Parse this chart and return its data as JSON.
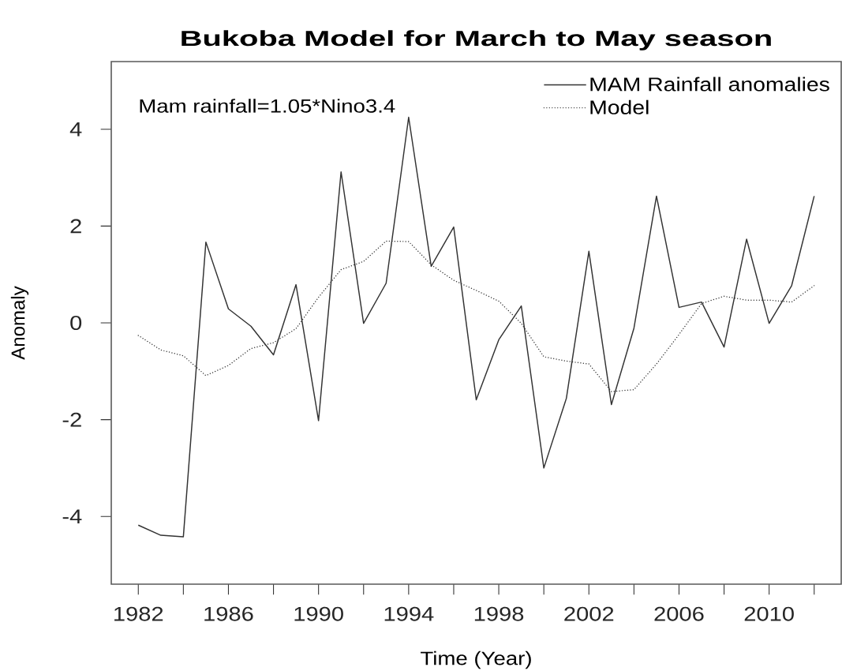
{
  "chart_data": {
    "type": "line",
    "title": "Bukoba Model for March to May season",
    "xlabel": "Time (Year)",
    "ylabel": "Anomaly",
    "annotations": [
      "Mam rainfall=1.05*Nino3.4"
    ],
    "x": [
      1982,
      1983,
      1984,
      1985,
      1986,
      1987,
      1988,
      1989,
      1990,
      1991,
      1992,
      1993,
      1994,
      1995,
      1996,
      1997,
      1998,
      1999,
      2000,
      2001,
      2002,
      2003,
      2004,
      2005,
      2006,
      2007,
      2008,
      2009,
      2010,
      2011,
      2012
    ],
    "xlim": [
      1980.8,
      2013.2
    ],
    "ylim": [
      -5.4,
      5.4
    ],
    "xticks": [
      1982,
      {
        "value": 1984,
        "label": null
      },
      1986,
      {
        "value": 1988,
        "label": null
      },
      1990,
      {
        "value": 1992,
        "label": null
      },
      1994,
      {
        "value": 1996,
        "label": null
      },
      1998,
      {
        "value": 2000,
        "label": null
      },
      2002,
      {
        "value": 2004,
        "label": null
      },
      2006,
      {
        "value": 2008,
        "label": null
      },
      2010,
      {
        "value": 2012,
        "label": null
      }
    ],
    "yticks": [
      -4,
      -2,
      0,
      2,
      4
    ],
    "legend": "top right",
    "series": [
      {
        "name": "MAM Rainfall anomalies",
        "color": "#333333",
        "line_style": "solid",
        "values": [
          -4.18,
          -4.39,
          -4.42,
          1.67,
          0.29,
          -0.07,
          -0.66,
          0.79,
          -2.02,
          3.12,
          -0.01,
          0.82,
          4.25,
          1.17,
          1.98,
          -1.59,
          -0.35,
          0.35,
          -3.0,
          -1.56,
          1.48,
          -1.69,
          -0.11,
          2.62,
          0.32,
          0.43,
          -0.5,
          1.73,
          -0.01,
          0.77,
          2.62
        ]
      },
      {
        "name": "Model",
        "color": "#333333",
        "line_style": "dotted",
        "values": [
          -0.26,
          -0.56,
          -0.68,
          -1.09,
          -0.88,
          -0.53,
          -0.41,
          -0.12,
          0.53,
          1.1,
          1.27,
          1.69,
          1.68,
          1.2,
          0.88,
          0.67,
          0.45,
          -0.01,
          -0.7,
          -0.79,
          -0.85,
          -1.42,
          -1.38,
          -0.85,
          -0.24,
          0.4,
          0.55,
          0.47,
          0.47,
          0.43,
          0.77
        ]
      }
    ]
  }
}
